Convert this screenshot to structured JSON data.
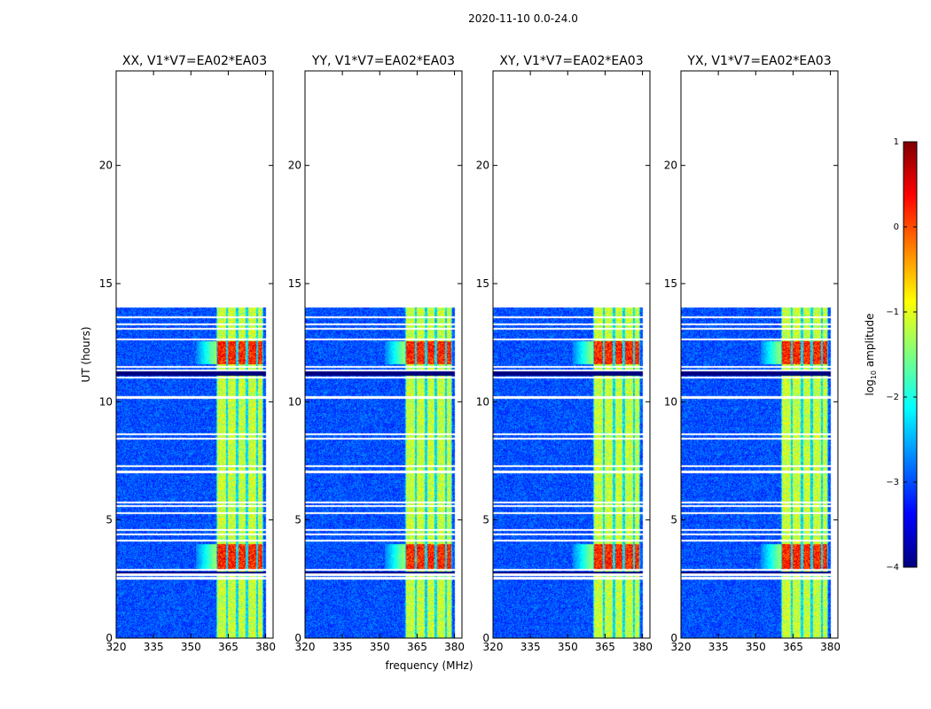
{
  "figure_title": "2020-11-10 0.0-24.0",
  "shared_xlabel": "frequency (MHz)",
  "shared_ylabel": "UT (hours)",
  "colorbar": {
    "label": "log",
    "label_sub": "10",
    "label_rest": " amplitude",
    "range": [
      -4,
      1
    ],
    "ticks": [
      "1",
      "0",
      "−1",
      "−2",
      "−3",
      "−4"
    ],
    "colormap": "jet",
    "colors": [
      "#00007f",
      "#0000ff",
      "#007fff",
      "#00ffff",
      "#7fff7f",
      "#ffff00",
      "#ff7f00",
      "#ff0000",
      "#7f0000"
    ]
  },
  "chart_data": [
    {
      "type": "heatmap",
      "title": "XX, V1*V7=EA02*EA03",
      "xlim": [
        320,
        383
      ],
      "ylim": [
        0,
        24
      ],
      "xticks": [
        320,
        335,
        350,
        365,
        380
      ],
      "xtick_labels": [
        "320",
        "335",
        "350",
        "365",
        "380"
      ],
      "yticks": [
        0,
        5,
        10,
        15,
        20
      ],
      "ytick_labels": [
        "0",
        "5",
        "10",
        "15",
        "20"
      ],
      "data_extent_hours": [
        0,
        14
      ],
      "rfi_band_mhz": [
        360,
        379
      ],
      "strong_bursts_hours": [
        [
          2.9,
          4.0
        ],
        [
          11.6,
          12.6
        ]
      ]
    },
    {
      "type": "heatmap",
      "title": "YY, V1*V7=EA02*EA03",
      "xlim": [
        320,
        383
      ],
      "ylim": [
        0,
        24
      ],
      "xticks": [
        320,
        335,
        350,
        365,
        380
      ],
      "xtick_labels": [
        "320",
        "335",
        "350",
        "365",
        "380"
      ],
      "yticks": [
        0,
        5,
        10,
        15,
        20
      ],
      "ytick_labels": [
        "0",
        "5",
        "10",
        "15",
        "20"
      ],
      "data_extent_hours": [
        0,
        14
      ],
      "rfi_band_mhz": [
        360,
        379
      ],
      "strong_bursts_hours": [
        [
          2.9,
          4.0
        ],
        [
          11.6,
          12.6
        ]
      ]
    },
    {
      "type": "heatmap",
      "title": "XY, V1*V7=EA02*EA03",
      "xlim": [
        320,
        383
      ],
      "ylim": [
        0,
        24
      ],
      "xticks": [
        320,
        335,
        350,
        365,
        380
      ],
      "xtick_labels": [
        "320",
        "335",
        "350",
        "365",
        "380"
      ],
      "yticks": [
        0,
        5,
        10,
        15,
        20
      ],
      "ytick_labels": [
        "0",
        "5",
        "10",
        "15",
        "20"
      ],
      "data_extent_hours": [
        0,
        14
      ],
      "rfi_band_mhz": [
        360,
        379
      ],
      "strong_bursts_hours": [
        [
          2.9,
          4.0
        ],
        [
          11.6,
          12.6
        ]
      ]
    },
    {
      "type": "heatmap",
      "title": "YX, V1*V7=EA02*EA03",
      "xlim": [
        320,
        383
      ],
      "ylim": [
        0,
        24
      ],
      "xticks": [
        320,
        335,
        350,
        365,
        380
      ],
      "xtick_labels": [
        "320",
        "335",
        "350",
        "365",
        "380"
      ],
      "yticks": [
        0,
        5,
        10,
        15,
        20
      ],
      "ytick_labels": [
        "0",
        "5",
        "10",
        "15",
        "20"
      ],
      "data_extent_hours": [
        0,
        14
      ],
      "rfi_band_mhz": [
        360,
        379
      ],
      "strong_bursts_hours": [
        [
          2.9,
          4.0
        ],
        [
          11.6,
          12.6
        ]
      ]
    }
  ]
}
